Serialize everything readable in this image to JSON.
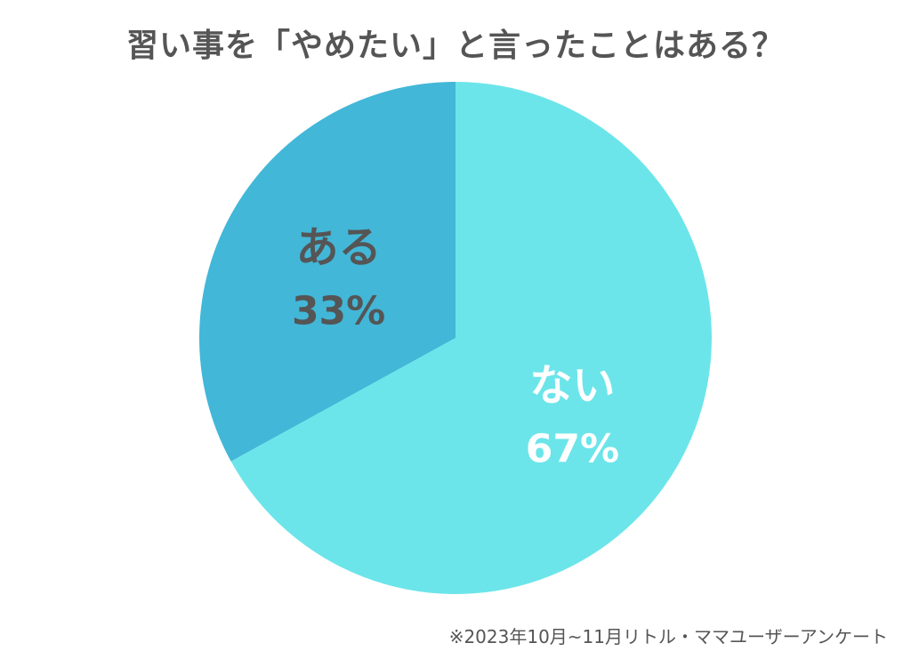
{
  "title": "習い事を「やめたい」と言ったことはある？",
  "footnote": "※2023年10月~11月リトル・ママユーザーアンケート",
  "colors": {
    "title_text": "#555555",
    "ある_fill": "#42b7d8",
    "ない_fill": "#6ce5ea",
    "ある_label": "#555555",
    "ない_label": "#ffffff"
  },
  "chart_data": {
    "type": "pie",
    "title": "習い事を「やめたい」と言ったことはある？",
    "slices": [
      {
        "label": "ない",
        "value": 67,
        "value_label": "67%",
        "color": "#6ce5ea",
        "text_color": "#ffffff"
      },
      {
        "label": "ある",
        "value": 33,
        "value_label": "33%",
        "color": "#42b7d8",
        "text_color": "#555555"
      }
    ],
    "start": "12 o'clock",
    "direction": "clockwise"
  }
}
